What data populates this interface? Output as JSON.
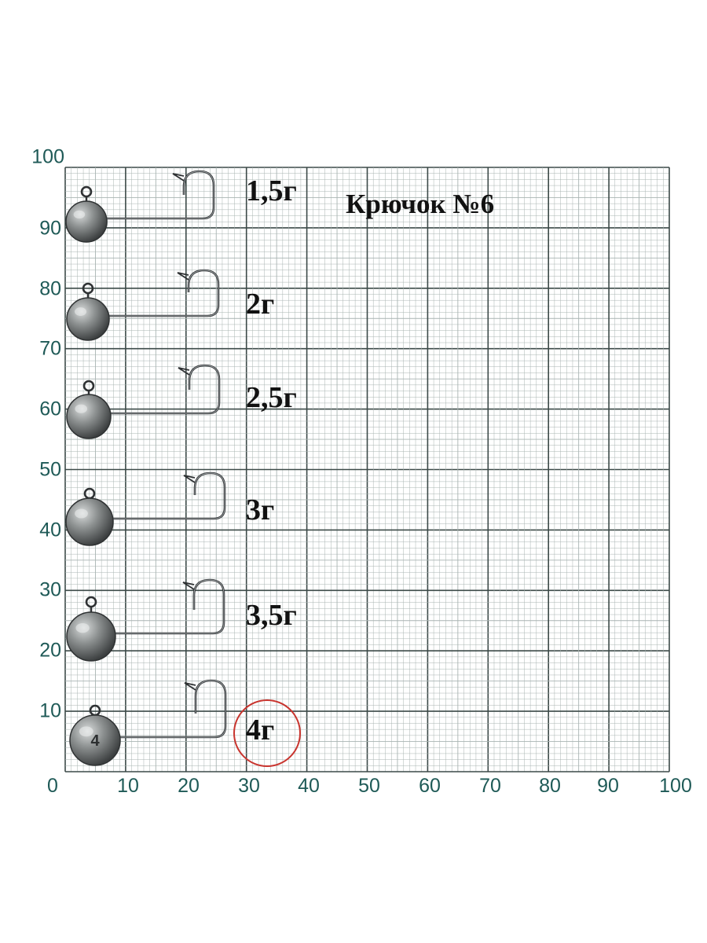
{
  "title": "Крючок №6",
  "colors": {
    "grid_major": "#3c4a48",
    "grid_minor": "#a9b4b2",
    "axis_label": "#1f5a57",
    "highlight": "#c8342e"
  },
  "axes": {
    "y_ticks": [
      "100",
      "90",
      "80",
      "70",
      "60",
      "50",
      "40",
      "30",
      "20",
      "10"
    ],
    "x_ticks": [
      "0",
      "10",
      "20",
      "30",
      "40",
      "50",
      "60",
      "70",
      "80",
      "90",
      "100"
    ]
  },
  "jigs": [
    {
      "weight": "1,5г",
      "head_mark": ""
    },
    {
      "weight": "2г",
      "head_mark": ""
    },
    {
      "weight": "2,5г",
      "head_mark": ""
    },
    {
      "weight": "3г",
      "head_mark": ""
    },
    {
      "weight": "3,5г",
      "head_mark": ""
    },
    {
      "weight": "4г",
      "head_mark": "4"
    }
  ],
  "highlighted_weight": "4г"
}
